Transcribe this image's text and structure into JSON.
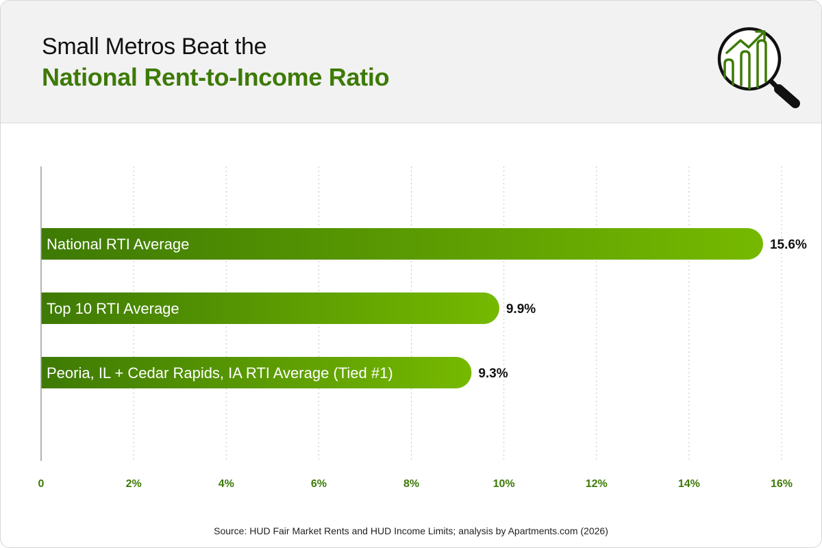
{
  "header": {
    "title_line1": "Small Metros Beat the",
    "title_line2": "National Rent-to-Income Ratio",
    "icon": "magnifier-chart-icon"
  },
  "chart_data": {
    "type": "bar",
    "orientation": "horizontal",
    "categories": [
      "National RTI Average",
      "Top 10 RTI Average",
      "Peoria, IL + Cedar Rapids, IA RTI Average (Tied #1)"
    ],
    "values": [
      15.6,
      9.9,
      9.3
    ],
    "value_labels": [
      "15.6%",
      "9.9%",
      "9.3%"
    ],
    "xlim": [
      0,
      16
    ],
    "xticks": [
      0,
      2,
      4,
      6,
      8,
      10,
      12,
      14,
      16
    ],
    "xtick_labels": [
      "0",
      "2%",
      "4%",
      "6%",
      "8%",
      "10%",
      "12%",
      "14%",
      "16%"
    ],
    "grid": "vertical dotted",
    "colors": {
      "bar_start": "#3e7a04",
      "bar_end": "#76b900",
      "accent": "#3d7a06"
    }
  },
  "footer": {
    "source": "Source: HUD Fair Market Rents and HUD Income Limits; analysis by Apartments.com (2026)"
  }
}
